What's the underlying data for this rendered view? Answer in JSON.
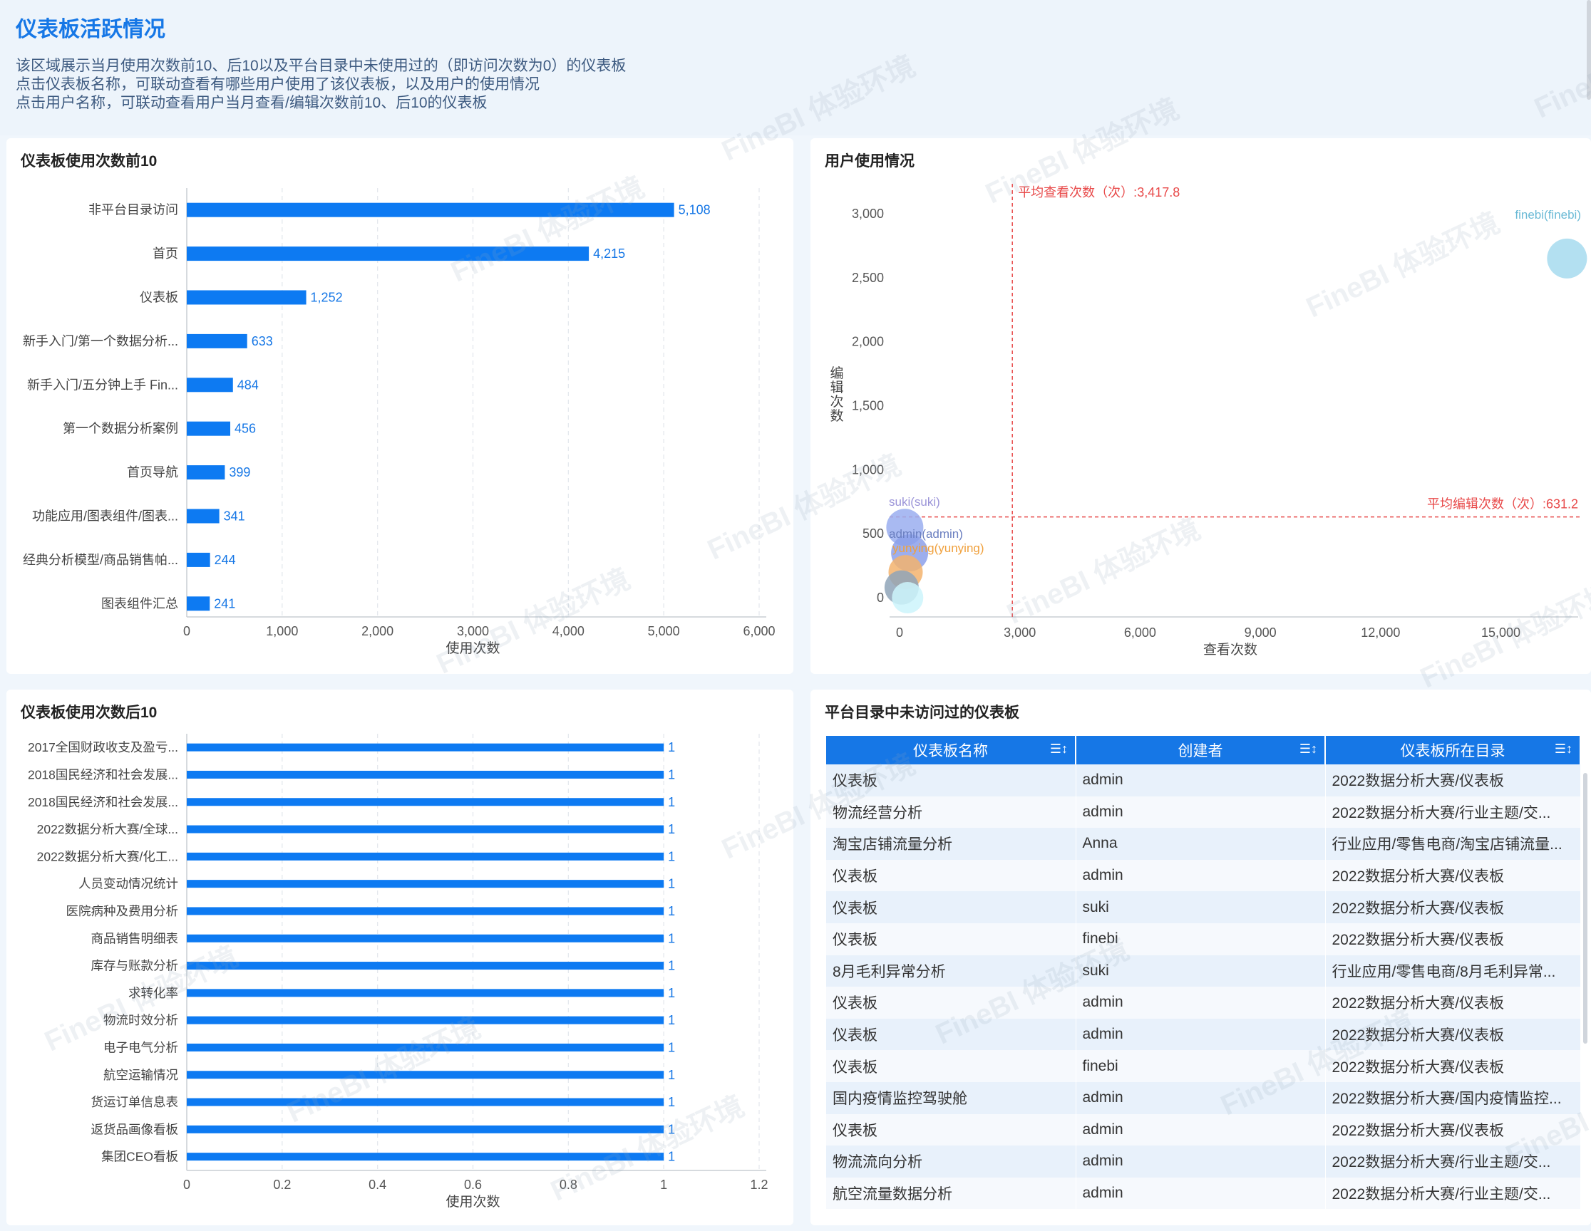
{
  "header": {
    "title": "仪表板活跃情况",
    "desc": [
      "该区域展示当月使用次数前10、后10以及平台目录中未使用过的（即访问次数为0）的仪表板",
      "点击仪表板名称，可联动查看有哪些用户使用了该仪表板，以及用户的使用情况",
      "点击用户名称，可联动查看用户当月查看/编辑次数前10、后10的仪表板"
    ]
  },
  "watermark": "FineBI 体验环境",
  "colors": {
    "accent": "#1677e6",
    "bar": "#0d7af2",
    "refline": "#e84a4a"
  },
  "top10": {
    "title": "仪表板使用次数前10",
    "chart_data": {
      "type": "bar",
      "orientation": "horizontal",
      "categories": [
        "非平台目录访问",
        "首页",
        "仪表板",
        "新手入门/第一个数据分析...",
        "新手入门/五分钟上手 Fin...",
        "第一个数据分析案例",
        "首页导航",
        "功能应用/图表组件/图表...",
        "经典分析模型/商品销售帕...",
        "图表组件汇总"
      ],
      "values": [
        5108,
        4215,
        1252,
        633,
        484,
        456,
        399,
        341,
        244,
        241
      ],
      "value_labels": [
        "5,108",
        "4,215",
        "1,252",
        "633",
        "484",
        "456",
        "399",
        "341",
        "244",
        "241"
      ],
      "xlabel": "使用次数",
      "xlim": [
        0,
        6000
      ],
      "ticks": [
        "0",
        "1,000",
        "2,000",
        "3,000",
        "4,000",
        "5,000",
        "6,000"
      ]
    }
  },
  "users": {
    "title": "用户使用情况",
    "chart_data": {
      "type": "scatter",
      "xlabel": "查看次数",
      "ylabel": "编辑次数",
      "xlim": [
        0,
        17000
      ],
      "ylim": [
        -150,
        3200
      ],
      "xticks": [
        "0",
        "3,000",
        "6,000",
        "9,000",
        "12,000",
        "15,000"
      ],
      "yticks": [
        "0",
        "500",
        "1,000",
        "1,500",
        "2,000",
        "2,500",
        "3,000"
      ],
      "avg_x_label": "平均查看次数（次）:3,417.8",
      "avg_y_label": "平均编辑次数（次）:631.2",
      "avg_x": 3417.8,
      "avg_y": 631.2,
      "points": [
        {
          "name": "finebi(finebi)",
          "x": 16900,
          "y": 2650,
          "color": "#a6dbee"
        },
        {
          "name": "suki(suki)",
          "x": 380,
          "y": 550,
          "color": "#9aaef0"
        },
        {
          "name": "admin(admin)",
          "x": 500,
          "y": 350,
          "color": "#8ca0ea"
        },
        {
          "name": "yunying(yunying)",
          "x": 400,
          "y": 200,
          "color": "#f3b36d"
        },
        {
          "name": "",
          "x": 300,
          "y": 80,
          "color": "#8fa5b8"
        },
        {
          "name": "",
          "x": 450,
          "y": 0,
          "color": "#cdf4fb"
        }
      ],
      "label_colors": {
        "finebi(finebi)": "#6bbad6",
        "suki(suki)": "#9b94d8",
        "admin(admin)": "#6b7fc0",
        "yunying(yunying)": "#f0a03c"
      }
    }
  },
  "bottom10": {
    "title": "仪表板使用次数后10",
    "chart_data": {
      "type": "bar",
      "orientation": "horizontal",
      "categories": [
        "2017全国财政收支及盈亏...",
        "2018国民经济和社会发展...",
        "2018国民经济和社会发展...",
        "2022数据分析大赛/全球...",
        "2022数据分析大赛/化工...",
        "人员变动情况统计",
        "医院病种及费用分析",
        "商品销售明细表",
        "库存与账款分析",
        "求转化率",
        "物流时效分析",
        "电子电气分析",
        "航空运输情况",
        "货运订单信息表",
        "返货品画像看板",
        "集团CEO看板"
      ],
      "values": [
        1,
        1,
        1,
        1,
        1,
        1,
        1,
        1,
        1,
        1,
        1,
        1,
        1,
        1,
        1,
        1
      ],
      "value_labels": [
        "1",
        "1",
        "1",
        "1",
        "1",
        "1",
        "1",
        "1",
        "1",
        "1",
        "1",
        "1",
        "1",
        "1",
        "1",
        "1"
      ],
      "xlabel": "使用次数",
      "xlim": [
        0,
        1.2
      ],
      "ticks": [
        "0",
        "0.2",
        "0.4",
        "0.6",
        "0.8",
        "1",
        "1.2"
      ]
    }
  },
  "unvisited": {
    "title": "平台目录中未访问过的仪表板",
    "columns": [
      "仪表板名称",
      "创建者",
      "仪表板所在目录"
    ],
    "sort_icon": "sort-icon",
    "rows": [
      [
        "仪表板",
        "admin",
        "2022数据分析大赛/仪表板"
      ],
      [
        "物流经营分析",
        "admin",
        "2022数据分析大赛/行业主题/交..."
      ],
      [
        "淘宝店铺流量分析",
        "Anna",
        "行业应用/零售电商/淘宝店铺流量..."
      ],
      [
        "仪表板",
        "admin",
        "2022数据分析大赛/仪表板"
      ],
      [
        "仪表板",
        "suki",
        "2022数据分析大赛/仪表板"
      ],
      [
        "仪表板",
        "finebi",
        "2022数据分析大赛/仪表板"
      ],
      [
        "8月毛利异常分析",
        "suki",
        "行业应用/零售电商/8月毛利异常..."
      ],
      [
        "仪表板",
        "admin",
        "2022数据分析大赛/仪表板"
      ],
      [
        "仪表板",
        "admin",
        "2022数据分析大赛/仪表板"
      ],
      [
        "仪表板",
        "finebi",
        "2022数据分析大赛/仪表板"
      ],
      [
        "国内疫情监控驾驶舱",
        "admin",
        "2022数据分析大赛/国内疫情监控..."
      ],
      [
        "仪表板",
        "admin",
        "2022数据分析大赛/仪表板"
      ],
      [
        "物流流向分析",
        "admin",
        "2022数据分析大赛/行业主题/交..."
      ],
      [
        "航空流量数据分析",
        "admin",
        "2022数据分析大赛/行业主题/交..."
      ]
    ]
  }
}
